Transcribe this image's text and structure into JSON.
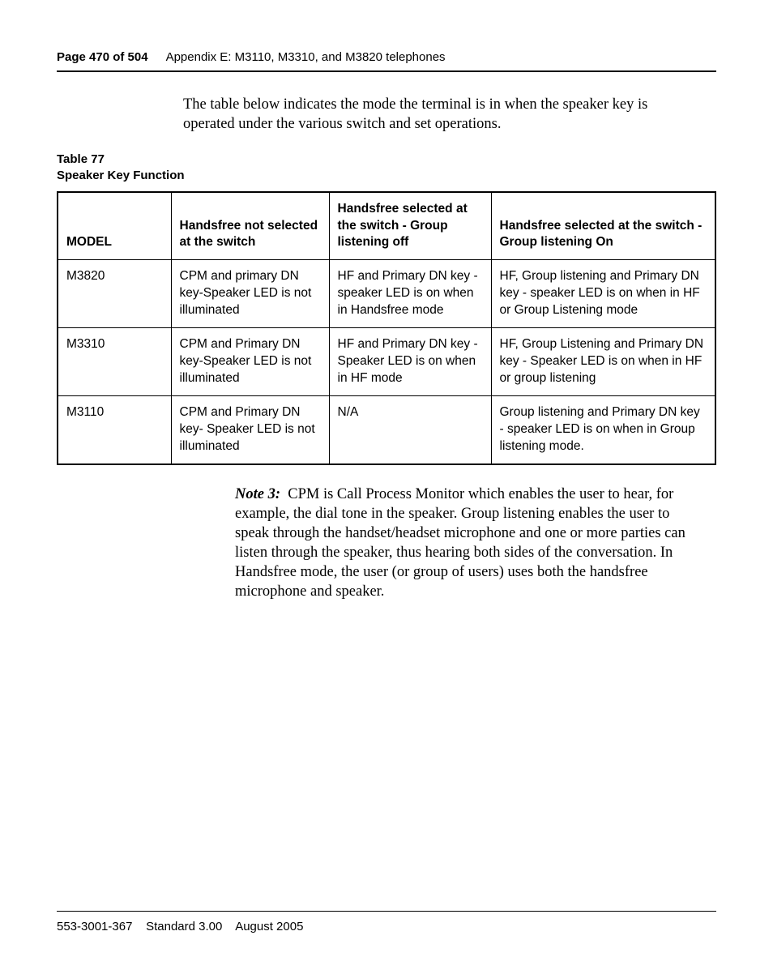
{
  "header": {
    "page_label": "Page 470 of 504",
    "appendix": "Appendix E: M3110, M3310, and M3820 telephones"
  },
  "intro": "The table below indicates the mode the terminal is in when the speaker key is operated under the various switch and set operations.",
  "table_caption_line1": "Table 77",
  "table_caption_line2": "Speaker Key Function",
  "table": {
    "columns": [
      "MODEL",
      "Handsfree not selected at the switch",
      "Handsfree selected at the switch - Group listening off",
      "Handsfree selected at the switch - Group listening On"
    ],
    "rows": [
      [
        "M3820",
        "CPM and primary DN key-Speaker LED is not illuminated",
        "HF and Primary DN key - speaker LED is on when in Handsfree mode",
        "HF, Group listening and Primary DN key - speaker LED is on when in HF or Group Listening mode"
      ],
      [
        "M3310",
        "CPM and Primary DN key-Speaker LED is not illuminated",
        "HF and Primary DN key - Speaker LED is on when in HF mode",
        "HF, Group Listening and Primary DN key - Speaker LED is on when in HF or group listening"
      ],
      [
        "M3110",
        "CPM and Primary DN key- Speaker LED is not illuminated",
        "N/A",
        "Group listening and Primary DN key - speaker LED is on when in Group listening mode."
      ]
    ]
  },
  "note": {
    "label": "Note 3:",
    "body": "CPM is Call Process Monitor which enables the user to hear, for example, the dial tone in the speaker. Group listening enables the user to speak through the handset/headset microphone and one or more parties can listen through the speaker, thus hearing both sides of the conversation. In Handsfree mode, the user (or group of users) uses both the handsfree microphone and speaker."
  },
  "footer": {
    "docnum": "553-3001-367",
    "standard": "Standard 3.00",
    "date": "August 2005"
  }
}
